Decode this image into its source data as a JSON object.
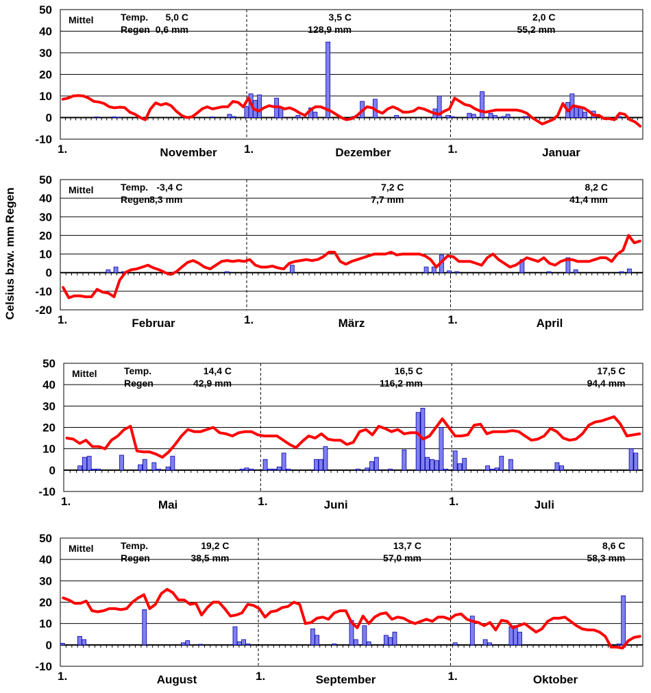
{
  "y_axis_label": "Celsius bzw. mm Regen",
  "colors": {
    "temperature": "#ff0000",
    "rain_fill": "#7f7fef",
    "rain_stroke": "#0000a0",
    "grid": "#000000"
  },
  "chart_data": [
    {
      "type": "bar+line",
      "ylim": [
        -10,
        50
      ],
      "yticks": [
        "50",
        "40",
        "30",
        "20",
        "10",
        "0",
        "-10"
      ],
      "labels": {
        "mittel": "Mittel",
        "temp": "Temp.",
        "regen": "Regen"
      },
      "months": [
        {
          "name": "November",
          "start_label": "1.",
          "temp": "5,0   C",
          "rain": "0,6 mm"
        },
        {
          "name": "Dezember",
          "start_label": "1.",
          "temp": "3,5   C",
          "rain": "128,9 mm"
        },
        {
          "name": "Januar",
          "start_label": "1.",
          "temp": "2,0   C",
          "rain": "55,2 mm"
        }
      ],
      "temperature": [
        8.5,
        9,
        10,
        10.2,
        10,
        9,
        7.5,
        7.2,
        6.5,
        5,
        4.5,
        4.8,
        4.6,
        2.5,
        1.5,
        0,
        -1,
        4,
        6.8,
        5.8,
        6.5,
        5.5,
        3,
        1,
        0,
        0.3,
        2,
        4,
        5,
        4,
        4.5,
        5,
        5,
        7.5,
        7,
        5,
        9,
        4,
        3,
        4.5,
        5.5,
        5,
        5,
        4,
        4.5,
        3.5,
        2,
        1,
        3.5,
        5,
        5,
        4,
        3,
        1.5,
        0,
        -1,
        -0.5,
        0.8,
        3,
        5,
        4.5,
        3,
        2,
        4,
        5,
        4,
        2.5,
        2.5,
        3,
        4.5,
        4,
        3,
        2,
        1.5,
        3,
        4,
        9,
        7.5,
        6,
        5.5,
        4,
        3,
        2.5,
        3,
        3.5,
        3.5,
        3.5,
        3.5,
        3.5,
        3,
        2,
        0,
        -1.5,
        -3,
        -2,
        -1,
        1,
        6.5,
        3,
        5.5,
        5,
        4.5,
        3,
        1,
        1,
        -0.5,
        -0.5,
        -1,
        2,
        1.5,
        -1,
        -2,
        -4
      ],
      "rain": [
        0,
        0,
        0,
        0,
        0,
        0,
        0,
        0,
        0.3,
        0,
        0,
        0,
        0.3,
        0.2,
        0,
        0,
        0,
        0,
        0,
        0,
        0,
        0,
        0,
        0,
        0,
        0,
        0,
        0,
        0,
        0,
        0,
        0,
        0,
        0,
        0,
        0.3,
        0,
        0,
        0,
        1.5,
        0.5,
        0,
        0,
        5,
        11,
        8,
        10.5,
        0,
        0,
        0,
        9,
        4.5,
        0,
        0,
        0,
        1,
        0,
        0,
        4.5,
        2.5,
        0,
        0,
        35,
        0,
        0,
        0,
        0,
        0,
        0.5,
        0,
        7.5,
        0,
        0,
        8.5,
        0,
        0,
        0,
        0,
        1,
        0,
        0,
        0,
        0,
        0,
        0,
        0,
        0,
        4,
        10,
        0,
        1,
        0.5,
        0,
        0,
        0,
        2,
        1.5,
        0,
        12,
        0,
        2,
        1,
        0,
        0.5,
        1.5,
        0,
        0,
        0,
        0.5,
        0.5,
        0,
        0,
        0,
        0,
        0,
        0,
        0,
        0,
        7,
        11,
        5,
        4.5,
        2.5,
        0,
        3,
        0,
        0,
        0,
        0,
        0,
        0.5,
        0,
        0,
        0,
        0,
        0
      ]
    },
    {
      "type": "bar+line",
      "ylim": [
        -20,
        50
      ],
      "yticks": [
        "50",
        "40",
        "30",
        "20",
        "10",
        "0",
        "-10",
        "-20"
      ],
      "labels": {
        "mittel": "Mittel",
        "temp": "Temp.",
        "regen": "Regen"
      },
      "months": [
        {
          "name": "Februar",
          "start_label": "1.",
          "temp": "-3,4   C",
          "rain": "8,3 mm"
        },
        {
          "name": "März",
          "start_label": "1.",
          "temp": "7,2   C",
          "rain": "7,7 mm"
        },
        {
          "name": "April",
          "start_label": "1.",
          "temp": "8,2   C",
          "rain": "41,4 mm"
        }
      ],
      "temperature": [
        -8,
        -13.5,
        -12.5,
        -12.5,
        -13,
        -13,
        -9,
        -10.5,
        -11,
        -13,
        -4,
        0,
        1.5,
        2,
        3,
        4,
        2.5,
        1.5,
        0,
        -1,
        0.5,
        3,
        5.5,
        6.5,
        5,
        3,
        2,
        4,
        6,
        6.5,
        6,
        6.5,
        6,
        7,
        4,
        3,
        3,
        3.5,
        2.5,
        2,
        5,
        6,
        6.5,
        7,
        6.5,
        7,
        8.5,
        11,
        11,
        6,
        4.5,
        6,
        7,
        8,
        9,
        10,
        10,
        10,
        11,
        9.5,
        10,
        10,
        10,
        10,
        9,
        7,
        3,
        6,
        9,
        8.5,
        6,
        6,
        6,
        5,
        4,
        8,
        10,
        7,
        5,
        3,
        4,
        6,
        8,
        7,
        6,
        8,
        5,
        4,
        6,
        7,
        7,
        6,
        6,
        6,
        7,
        8,
        8,
        6,
        10,
        12,
        20,
        16,
        17
      ],
      "rain": [
        0,
        0,
        0,
        0,
        0,
        0,
        0,
        0,
        0,
        0,
        0,
        0,
        0,
        0,
        0,
        0,
        0,
        0,
        0,
        0,
        0,
        0.5,
        0,
        0,
        0,
        0,
        0,
        0,
        0,
        0.5,
        0,
        0,
        0,
        0,
        0,
        0,
        0,
        0,
        0,
        0,
        0,
        0,
        0,
        0,
        0,
        0,
        0,
        0,
        0,
        0,
        0,
        0,
        0,
        0,
        0,
        0,
        0,
        0,
        0,
        0,
        0,
        0,
        0,
        0,
        0,
        0,
        0,
        0,
        0,
        0,
        0,
        0,
        0,
        0,
        0,
        0,
        0,
        0,
        0,
        0,
        0,
        0,
        0,
        0,
        0,
        0,
        0,
        0,
        0,
        0,
        0,
        0,
        0,
        0,
        0,
        0,
        0,
        0,
        0,
        0,
        0,
        0,
        0,
        0,
        0,
        0,
        0,
        0,
        0,
        0,
        0,
        0,
        0,
        0,
        0,
        0,
        0,
        0
      ],
      "rain_bars": [
        {
          "day": 12,
          "value": 1.5
        },
        {
          "day": 14,
          "value": 3
        },
        {
          "day": 16,
          "value": 0.5
        },
        {
          "day": 43,
          "value": 0.5
        },
        {
          "day": 60,
          "value": 4
        },
        {
          "day": 95,
          "value": 3
        },
        {
          "day": 97,
          "value": 3
        },
        {
          "day": 99,
          "value": 9.5
        },
        {
          "day": 101,
          "value": 1
        },
        {
          "day": 103,
          "value": 0.5
        },
        {
          "day": 120,
          "value": 7
        },
        {
          "day": 127,
          "value": 0.5
        },
        {
          "day": 132,
          "value": 8
        },
        {
          "day": 134,
          "value": 1.5
        },
        {
          "day": 146,
          "value": 0.5
        },
        {
          "day": 148,
          "value": 2
        }
      ]
    },
    {
      "type": "bar+line",
      "ylim": [
        -10,
        50
      ],
      "yticks": [
        "50",
        "40",
        "30",
        "20",
        "10",
        "0",
        "-10"
      ],
      "labels": {
        "mittel": "Mittel",
        "temp": "Temp.",
        "regen": "Regen"
      },
      "months": [
        {
          "name": "Mai",
          "start_label": "1.",
          "temp": "14,4   C",
          "rain": "42,9 mm"
        },
        {
          "name": "Juni",
          "start_label": "1.",
          "temp": "16,5   C",
          "rain": "116,2 mm"
        },
        {
          "name": "Juli",
          "start_label": "1.",
          "temp": "17,5   C",
          "rain": "94,4 mm"
        }
      ],
      "temperature": [
        15,
        14.5,
        12.5,
        14,
        11,
        11,
        10,
        14,
        16,
        19,
        20.5,
        9,
        8.5,
        8.5,
        7.5,
        6,
        8.5,
        12,
        16,
        19,
        18,
        18,
        19,
        20,
        17.5,
        17,
        16,
        17.5,
        18,
        18,
        16.5,
        16,
        16,
        16,
        14,
        12,
        10.5,
        13.5,
        16,
        15,
        17,
        14.5,
        14,
        14,
        12,
        13,
        18,
        19,
        16.5,
        20.5,
        19.5,
        18,
        19,
        17,
        17.5,
        17.5,
        14.5,
        16,
        20,
        24,
        20,
        16,
        16,
        16.5,
        21,
        21.5,
        17,
        18,
        18,
        18,
        18.5,
        18,
        16,
        14,
        14.5,
        16,
        19.5,
        18,
        15,
        14,
        14.5,
        17,
        21,
        22.5,
        23,
        24,
        25,
        21.5,
        16,
        16.5,
        17
      ],
      "rain": [
        0,
        0,
        0,
        2,
        6,
        6.5,
        0.5,
        0.5,
        0,
        0,
        0,
        0,
        7,
        0,
        0,
        0,
        2.5,
        5,
        0,
        3.5,
        0.5,
        0,
        1.5,
        6.5,
        0,
        0,
        0,
        0,
        0,
        0,
        0,
        0,
        0,
        0,
        0,
        0,
        0,
        0,
        0.5,
        1,
        0.5,
        0,
        0,
        5,
        0.5,
        0.5,
        1.5,
        8,
        0.5,
        0,
        0,
        0,
        0,
        0,
        5,
        5,
        11,
        0,
        0,
        0,
        0,
        0,
        0,
        0.5,
        0,
        1,
        4,
        6,
        0,
        0,
        0.5,
        0,
        0,
        9.5,
        0,
        0,
        27,
        29,
        6,
        5,
        4.5,
        20,
        0.5,
        0,
        9,
        3,
        5.5,
        0,
        0,
        0,
        0,
        2,
        0.5,
        1,
        6.5,
        0,
        5,
        0,
        0,
        0,
        0,
        0,
        0,
        0,
        0,
        0,
        3.5,
        2,
        0,
        0,
        0,
        0,
        0,
        0,
        0,
        0,
        0,
        0,
        0,
        0,
        0,
        0,
        10,
        8,
        0
      ]
    },
    {
      "type": "bar+line",
      "ylim": [
        -10,
        50
      ],
      "yticks": [
        "50",
        "40",
        "30",
        "20",
        "10",
        "0",
        "-10"
      ],
      "labels": {
        "mittel": "Mittel",
        "temp": "Temp.",
        "regen": "Regen"
      },
      "months": [
        {
          "name": "August",
          "start_label": "1.",
          "temp": "19,2   C",
          "rain": "38,5 mm"
        },
        {
          "name": "September",
          "start_label": "1.",
          "temp": "13,7   C",
          "rain": "57,0 mm"
        },
        {
          "name": "Oktober",
          "start_label": "1.",
          "temp": "8,6   C",
          "rain": "58,3 mm"
        }
      ],
      "temperature": [
        22,
        21,
        19.5,
        19.5,
        20.5,
        16,
        15.5,
        16,
        17,
        17,
        16.5,
        17,
        20,
        22,
        23.5,
        17,
        19,
        24,
        26,
        24.5,
        21,
        21,
        19,
        19.5,
        14,
        17.5,
        20,
        20,
        17,
        13.5,
        14,
        15,
        19,
        18.5,
        17,
        13,
        15.5,
        16,
        17.5,
        18,
        20,
        19,
        10,
        10.5,
        12.5,
        13,
        12,
        15,
        16,
        16,
        10.5,
        8,
        13.5,
        10,
        13,
        14.5,
        15,
        12,
        13,
        12.5,
        11,
        10,
        11,
        12,
        11,
        13,
        13,
        12,
        14,
        14.5,
        12,
        11,
        10.5,
        9,
        10.5,
        7,
        11.5,
        11,
        8,
        9,
        10,
        8,
        6,
        7.5,
        11,
        12.5,
        12.5,
        13,
        11,
        9,
        7.5,
        7,
        7,
        6,
        4,
        -1,
        -1,
        -1.5,
        2,
        3.5,
        4
      ],
      "rain": [
        0.8,
        0,
        0,
        0,
        4,
        2.5,
        0,
        0,
        0,
        0,
        0,
        0,
        0,
        0,
        0,
        0,
        0,
        0,
        0,
        16.5,
        0,
        0,
        0,
        0,
        0,
        0,
        0,
        0,
        1,
        2,
        0,
        0,
        0.3,
        0,
        0,
        0,
        0,
        0,
        0,
        0,
        8.5,
        1.5,
        2.5,
        0.5,
        0,
        0,
        0,
        0,
        0,
        0,
        0,
        0,
        0,
        0,
        0,
        0,
        0,
        0,
        7.5,
        4.5,
        0,
        0,
        0,
        0.5,
        0,
        0,
        0,
        11.5,
        2.5,
        0,
        9,
        1.5,
        0,
        0,
        0,
        4.5,
        3.5,
        6,
        0,
        0,
        0,
        0,
        0,
        0,
        0,
        0,
        0,
        0,
        0,
        0,
        0,
        1,
        0,
        0,
        0,
        13.5,
        0,
        0,
        2.5,
        1,
        0,
        0,
        0,
        0,
        8.5,
        9,
        6,
        0,
        0,
        0,
        0,
        0,
        0,
        0,
        0,
        0,
        0,
        0,
        0,
        0,
        0,
        0,
        0,
        0,
        0,
        0,
        0,
        0,
        0,
        0.5,
        23,
        0,
        0,
        0,
        0
      ]
    }
  ]
}
